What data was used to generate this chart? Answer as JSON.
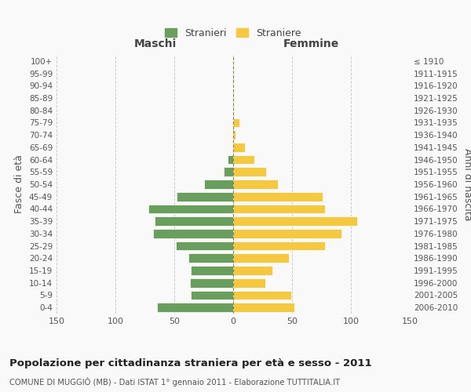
{
  "age_groups": [
    "100+",
    "95-99",
    "90-94",
    "85-89",
    "80-84",
    "75-79",
    "70-74",
    "65-69",
    "60-64",
    "55-59",
    "50-54",
    "45-49",
    "40-44",
    "35-39",
    "30-34",
    "25-29",
    "20-24",
    "15-19",
    "10-14",
    "5-9",
    "0-4"
  ],
  "birth_years": [
    "≤ 1910",
    "1911-1915",
    "1916-1920",
    "1921-1925",
    "1926-1930",
    "1931-1935",
    "1936-1940",
    "1941-1945",
    "1946-1950",
    "1951-1955",
    "1956-1960",
    "1961-1965",
    "1966-1970",
    "1971-1975",
    "1976-1980",
    "1981-1985",
    "1986-1990",
    "1991-1995",
    "1996-2000",
    "2001-2005",
    "2006-2010"
  ],
  "males": [
    0,
    0,
    0,
    0,
    0,
    0,
    0,
    0,
    5,
    8,
    25,
    48,
    72,
    67,
    68,
    49,
    38,
    36,
    37,
    36,
    65
  ],
  "females": [
    0,
    0,
    0,
    0,
    0,
    5,
    2,
    10,
    18,
    28,
    38,
    76,
    78,
    105,
    92,
    78,
    47,
    33,
    27,
    49,
    52
  ],
  "male_color": "#6a9e5e",
  "female_color": "#f5c842",
  "male_label": "Stranieri",
  "female_label": "Straniere",
  "title": "Popolazione per cittadinanza straniera per età e sesso - 2011",
  "subtitle": "COMUNE DI MUGGIÒ (MB) - Dati ISTAT 1° gennaio 2011 - Elaborazione TUTTITALIA.IT",
  "left_header": "Maschi",
  "right_header": "Femmine",
  "left_ylabel": "Fasce di età",
  "right_ylabel": "Anni di nascita",
  "xlim": 150,
  "bg_color": "#f9f9f9",
  "grid_color": "#cccccc"
}
